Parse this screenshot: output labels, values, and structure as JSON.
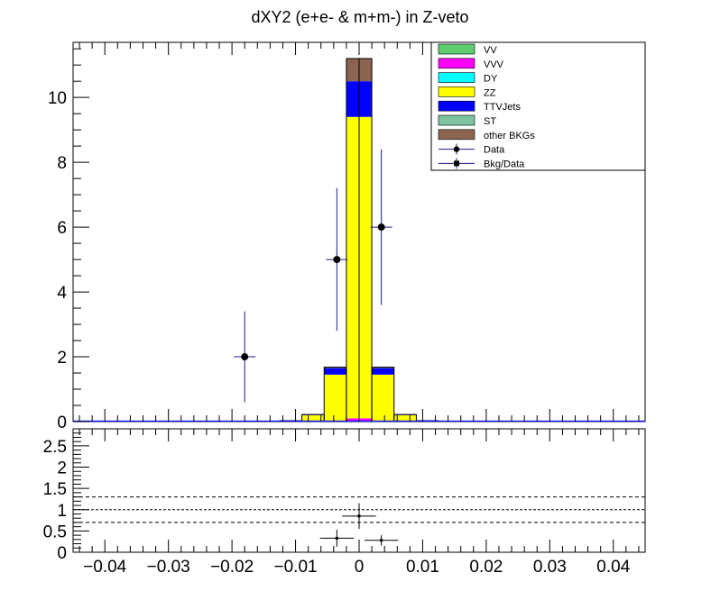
{
  "chart_data": [
    {
      "type": "bar",
      "stacked": true,
      "title": "dXY2 (e+e- & m+m-) in Z-veto",
      "xlim": [
        -0.045,
        0.045
      ],
      "ylim": [
        0,
        11.7
      ],
      "yticks": [
        0,
        2,
        4,
        6,
        8,
        10
      ],
      "ytick_labels": [
        "0",
        "2",
        "4",
        "6",
        "8",
        "10"
      ],
      "grid": false,
      "legend_position": "top-right",
      "legend": [
        {
          "label": "VV",
          "color": "#5ccc6e",
          "kind": "box"
        },
        {
          "label": "VVV",
          "color": "#ff00ff",
          "kind": "box"
        },
        {
          "label": "DY",
          "color": "#00ffff",
          "kind": "box"
        },
        {
          "label": "ZZ",
          "color": "#ffff00",
          "kind": "box"
        },
        {
          "label": "TTVJets",
          "color": "#0000ff",
          "kind": "box"
        },
        {
          "label": "ST",
          "color": "#7cc4a0",
          "kind": "box"
        },
        {
          "label": "other BKGs",
          "color": "#8c6450",
          "kind": "box"
        },
        {
          "label": "Data",
          "color": "#000000",
          "kind": "circle"
        },
        {
          "label": "Bkg/Data",
          "color": "#000000",
          "kind": "square"
        }
      ],
      "bin_edges": [
        -0.0125,
        -0.009,
        -0.0055,
        -0.002,
        0.0,
        0.002,
        0.0055,
        0.009,
        0.0125
      ],
      "series": [
        {
          "name": "VVV",
          "color": "#ff00ff",
          "values": [
            0,
            0,
            0,
            0.1,
            0.1,
            0,
            0,
            0
          ]
        },
        {
          "name": "ZZ",
          "color": "#ffff00",
          "values": [
            0.03,
            0.2,
            1.45,
            9.3,
            9.3,
            1.45,
            0.2,
            0.03
          ]
        },
        {
          "name": "TTVJets",
          "color": "#0000ff",
          "values": [
            0,
            0.02,
            0.2,
            1.1,
            1.1,
            0.2,
            0.02,
            0
          ]
        },
        {
          "name": "other BKGs",
          "color": "#8c6450",
          "values": [
            0,
            0,
            0.03,
            0.7,
            0.7,
            0.03,
            0,
            0
          ]
        }
      ],
      "data_points": [
        {
          "x": -0.018,
          "y": 2,
          "yerr_low": 1.4,
          "yerr_high": 1.4
        },
        {
          "x": -0.0035,
          "y": 5,
          "yerr_low": 2.2,
          "yerr_high": 2.2
        },
        {
          "x": 0.0035,
          "y": 6,
          "yerr_low": 2.4,
          "yerr_high": 2.4
        }
      ]
    },
    {
      "type": "scatter",
      "title": "",
      "xlim": [
        -0.045,
        0.045
      ],
      "ylim": [
        0,
        2.9
      ],
      "xticks": [
        -0.04,
        -0.03,
        -0.02,
        -0.01,
        0,
        0.01,
        0.02,
        0.03,
        0.04
      ],
      "xtick_labels": [
        "−0.04",
        "−0.03",
        "−0.02",
        "−0.01",
        "0",
        "0.01",
        "0.02",
        "0.03",
        "0.04"
      ],
      "yticks": [
        0,
        0.5,
        1,
        1.5,
        2,
        2.5
      ],
      "ytick_labels": [
        "0",
        "0.5",
        "1",
        "1.5",
        "2",
        "2.5"
      ],
      "reference_lines": [
        0.7,
        1.0,
        1.3
      ],
      "points": [
        {
          "x": -0.0035,
          "y": 0.33,
          "xerr": 0.0018,
          "yerr": 0.2
        },
        {
          "x": 0.0,
          "y": 0.85,
          "xerr": 0.0018,
          "yerr": 0.3
        },
        {
          "x": 0.0035,
          "y": 0.28,
          "xerr": 0.0018,
          "yerr": 0.12
        }
      ]
    }
  ]
}
